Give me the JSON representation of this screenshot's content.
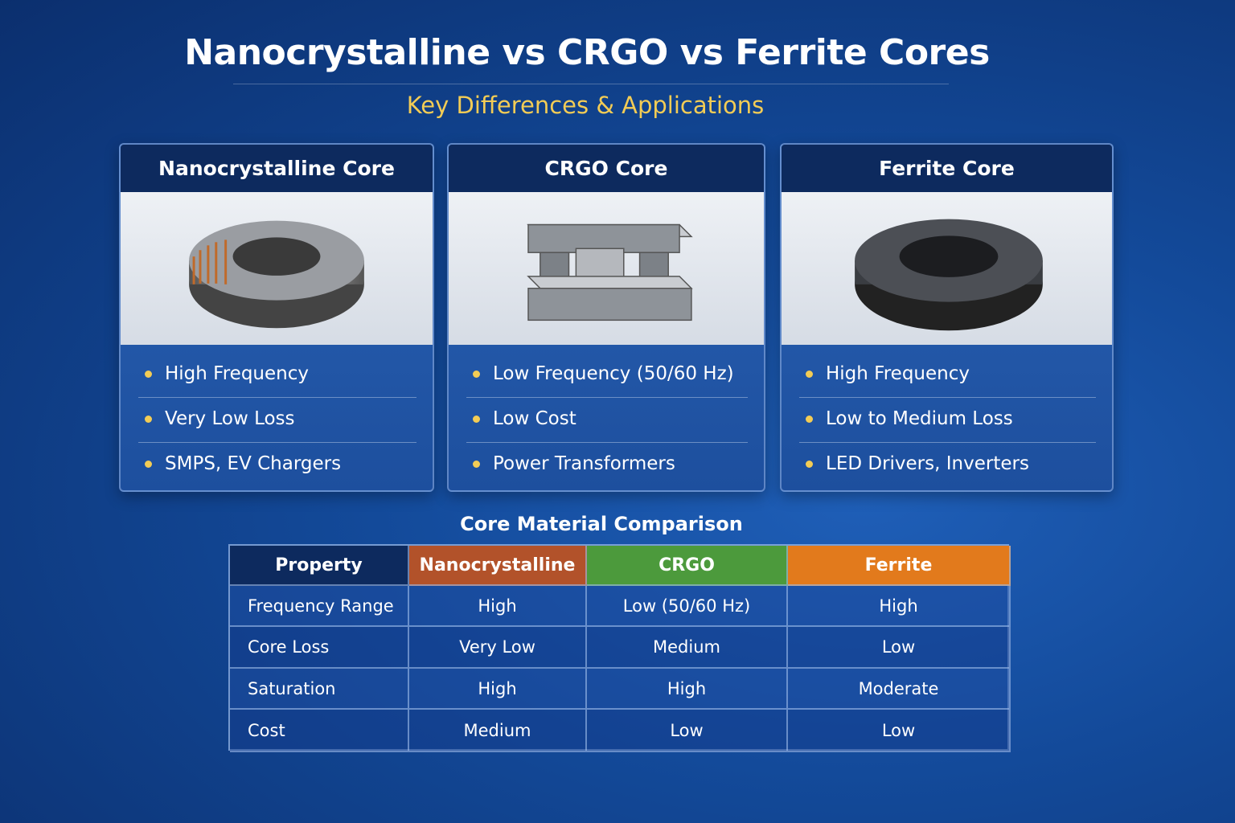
{
  "title": "Nanocrystalline vs CRGO vs Ferrite Cores",
  "subtitle": "Key Differences & Applications",
  "cards": [
    {
      "title": "Nanocrystalline Core",
      "bullets": [
        "High Frequency",
        "Very Low Loss",
        "SMPS, EV Chargers"
      ]
    },
    {
      "title": "CRGO Core",
      "bullets": [
        "Low Frequency (50/60 Hz)",
        "Low Cost",
        "Power Transformers"
      ]
    },
    {
      "title": "Ferrite Core",
      "bullets": [
        "High Frequency",
        "Low to Medium Loss",
        "LED Drivers, Inverters"
      ]
    }
  ],
  "table": {
    "title": "Core Material Comparison",
    "header": [
      "Property",
      "Nanocrystalline",
      "CRGO",
      "Ferrite"
    ],
    "rows": [
      [
        "Frequency Range",
        "High",
        "Low (50/60 Hz)",
        "High"
      ],
      [
        "Core Loss",
        "Very Low",
        "Medium",
        "Low"
      ],
      [
        "Saturation",
        "High",
        "High",
        "Moderate"
      ],
      [
        "Cost",
        "Medium",
        "Low",
        "Low"
      ]
    ]
  }
}
